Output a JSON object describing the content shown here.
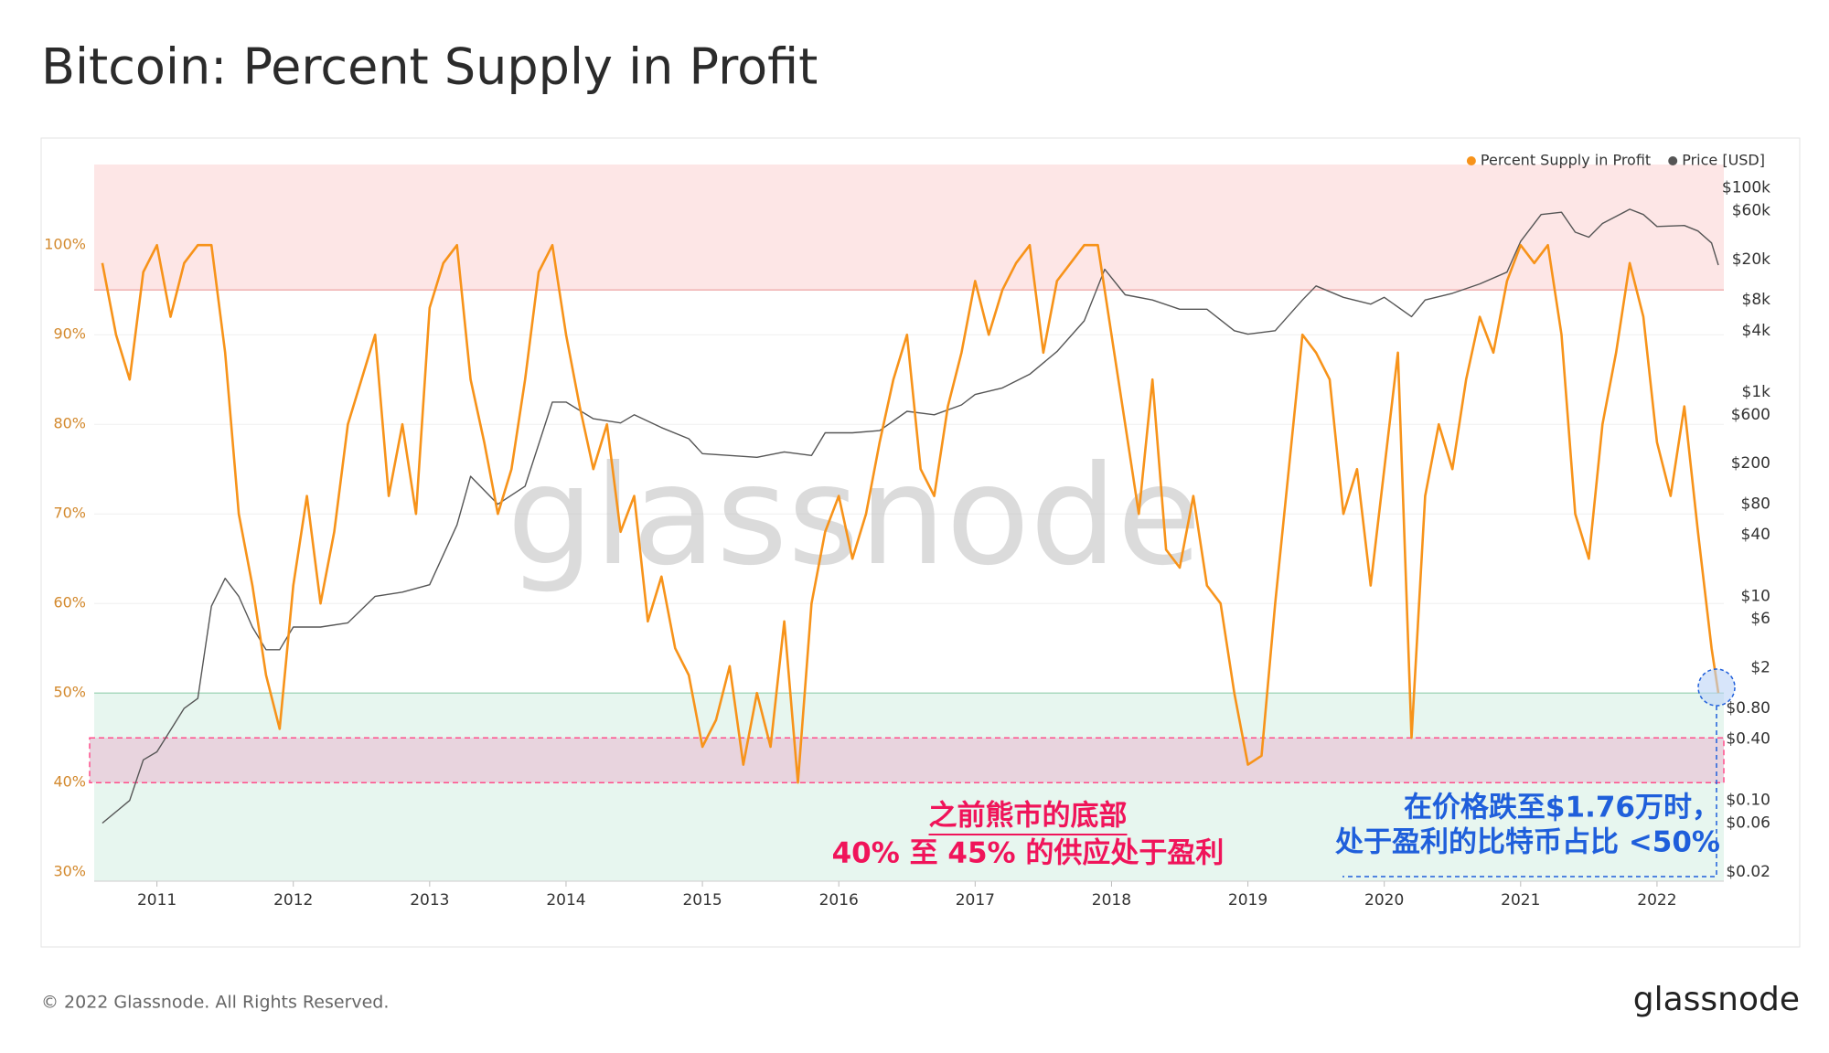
{
  "header": {
    "title": "Bitcoin: Percent Supply in Profit"
  },
  "chart_data": {
    "type": "line",
    "watermark": "glassnode",
    "xlim": [
      2010.54,
      2022.49
    ],
    "xticks": [
      2011,
      2012,
      2013,
      2014,
      2015,
      2016,
      2017,
      2018,
      2019,
      2020,
      2021,
      2022
    ],
    "ylim": [
      29,
      109
    ],
    "yticks": [
      {
        "value": 30,
        "label": "30%"
      },
      {
        "value": 40,
        "label": "40%"
      },
      {
        "value": 50,
        "label": "50%"
      },
      {
        "value": 60,
        "label": "60%"
      },
      {
        "value": 70,
        "label": "70%"
      },
      {
        "value": 80,
        "label": "80%"
      },
      {
        "value": 90,
        "label": "90%"
      },
      {
        "value": 100,
        "label": "100%"
      }
    ],
    "y2lim": [
      0.0162,
      170000
    ],
    "y2log": true,
    "y2ticks": [
      {
        "value": 100000,
        "label": "$100k"
      },
      {
        "value": 60000,
        "label": "$60k"
      },
      {
        "value": 20000,
        "label": "$20k"
      },
      {
        "value": 8000,
        "label": "$8k"
      },
      {
        "value": 4000,
        "label": "$4k"
      },
      {
        "value": 1000,
        "label": "$1k"
      },
      {
        "value": 600,
        "label": "$600"
      },
      {
        "value": 200,
        "label": "$200"
      },
      {
        "value": 80,
        "label": "$80"
      },
      {
        "value": 40,
        "label": "$40"
      },
      {
        "value": 10,
        "label": "$10"
      },
      {
        "value": 6,
        "label": "$6"
      },
      {
        "value": 2,
        "label": "$2"
      },
      {
        "value": 0.8,
        "label": "$0.80"
      },
      {
        "value": 0.4,
        "label": "$0.40"
      },
      {
        "value": 0.1,
        "label": "$0.10"
      },
      {
        "value": 0.06,
        "label": "$0.06"
      },
      {
        "value": 0.02,
        "label": "$0.02"
      }
    ],
    "grid": true,
    "legend": "top-right",
    "bands": [
      {
        "y": [
          95,
          109
        ],
        "color": "#fde6e6",
        "edge": "#ec9a9a"
      },
      {
        "y": [
          29,
          50
        ],
        "color": "#e7f6ef",
        "edge": "#93cfae"
      },
      {
        "y": [
          40,
          45
        ],
        "color": "#e8d4de",
        "edge": "#ff4f8b"
      }
    ],
    "series": [
      {
        "name": "Percent Supply in Profit",
        "color": "#f7931a",
        "x": [
          2010.6,
          2010.7,
          2010.8,
          2010.9,
          2011.0,
          2011.1,
          2011.2,
          2011.3,
          2011.4,
          2011.5,
          2011.6,
          2011.7,
          2011.8,
          2011.9,
          2012.0,
          2012.1,
          2012.2,
          2012.3,
          2012.4,
          2012.5,
          2012.6,
          2012.7,
          2012.8,
          2012.9,
          2013.0,
          2013.1,
          2013.2,
          2013.3,
          2013.4,
          2013.5,
          2013.6,
          2013.7,
          2013.8,
          2013.9,
          2014.0,
          2014.1,
          2014.2,
          2014.3,
          2014.4,
          2014.5,
          2014.6,
          2014.7,
          2014.8,
          2014.9,
          2015.0,
          2015.1,
          2015.2,
          2015.3,
          2015.4,
          2015.5,
          2015.6,
          2015.7,
          2015.8,
          2015.9,
          2016.0,
          2016.1,
          2016.2,
          2016.3,
          2016.4,
          2016.5,
          2016.6,
          2016.7,
          2016.8,
          2016.9,
          2017.0,
          2017.1,
          2017.2,
          2017.3,
          2017.4,
          2017.5,
          2017.6,
          2017.7,
          2017.8,
          2017.9,
          2018.0,
          2018.1,
          2018.2,
          2018.3,
          2018.4,
          2018.5,
          2018.6,
          2018.7,
          2018.8,
          2018.9,
          2019.0,
          2019.1,
          2019.2,
          2019.3,
          2019.4,
          2019.5,
          2019.6,
          2019.7,
          2019.8,
          2019.9,
          2020.0,
          2020.1,
          2020.2,
          2020.3,
          2020.4,
          2020.5,
          2020.6,
          2020.7,
          2020.8,
          2020.9,
          2021.0,
          2021.1,
          2021.2,
          2021.3,
          2021.4,
          2021.5,
          2021.6,
          2021.7,
          2021.8,
          2021.9,
          2022.0,
          2022.1,
          2022.2,
          2022.3,
          2022.4,
          2022.45
        ],
        "values": [
          98,
          90,
          85,
          97,
          100,
          92,
          98,
          100,
          100,
          88,
          70,
          62,
          52,
          46,
          62,
          72,
          60,
          68,
          80,
          85,
          90,
          72,
          80,
          70,
          93,
          98,
          100,
          85,
          78,
          70,
          75,
          85,
          97,
          100,
          90,
          82,
          75,
          80,
          68,
          72,
          58,
          63,
          55,
          52,
          44,
          47,
          53,
          42,
          50,
          44,
          58,
          40,
          60,
          68,
          72,
          65,
          70,
          78,
          85,
          90,
          75,
          72,
          82,
          88,
          96,
          90,
          95,
          98,
          100,
          88,
          96,
          98,
          100,
          100,
          90,
          80,
          70,
          85,
          66,
          64,
          72,
          62,
          60,
          50,
          42,
          43,
          60,
          75,
          90,
          88,
          85,
          70,
          75,
          62,
          75,
          88,
          45,
          72,
          80,
          75,
          85,
          92,
          88,
          96,
          100,
          98,
          100,
          90,
          70,
          65,
          80,
          88,
          98,
          92,
          78,
          72,
          82,
          68,
          55,
          50
        ]
      },
      {
        "name": "Price [USD]",
        "color": "#555555",
        "axis": "y2",
        "x": [
          2010.6,
          2010.8,
          2010.9,
          2011.0,
          2011.2,
          2011.3,
          2011.4,
          2011.5,
          2011.6,
          2011.7,
          2011.8,
          2011.9,
          2012.0,
          2012.2,
          2012.4,
          2012.6,
          2012.8,
          2013.0,
          2013.2,
          2013.3,
          2013.5,
          2013.7,
          2013.9,
          2014.0,
          2014.2,
          2014.4,
          2014.5,
          2014.7,
          2014.9,
          2015.0,
          2015.2,
          2015.4,
          2015.6,
          2015.8,
          2015.9,
          2016.1,
          2016.3,
          2016.5,
          2016.7,
          2016.9,
          2017.0,
          2017.2,
          2017.4,
          2017.6,
          2017.8,
          2017.95,
          2018.1,
          2018.3,
          2018.5,
          2018.7,
          2018.9,
          2019.0,
          2019.2,
          2019.4,
          2019.5,
          2019.7,
          2019.9,
          2020.0,
          2020.2,
          2020.3,
          2020.5,
          2020.7,
          2020.9,
          2021.0,
          2021.15,
          2021.3,
          2021.4,
          2021.5,
          2021.6,
          2021.8,
          2021.9,
          2022.0,
          2022.2,
          2022.3,
          2022.4,
          2022.45
        ],
        "values": [
          0.06,
          0.1,
          0.25,
          0.3,
          0.8,
          1,
          8,
          15,
          10,
          5,
          3,
          3,
          5,
          5,
          5.5,
          10,
          11,
          13,
          50,
          150,
          80,
          120,
          800,
          800,
          550,
          500,
          600,
          450,
          350,
          250,
          240,
          230,
          260,
          240,
          400,
          400,
          420,
          650,
          600,
          750,
          950,
          1100,
          1500,
          2500,
          5000,
          16000,
          9000,
          8000,
          6500,
          6500,
          4000,
          3700,
          4000,
          8000,
          11000,
          8500,
          7300,
          8500,
          5500,
          8000,
          9300,
          11500,
          15000,
          30000,
          55000,
          58000,
          37000,
          33000,
          45000,
          62000,
          55000,
          42000,
          43000,
          38000,
          29000,
          17600
        ]
      }
    ]
  },
  "annotations": {
    "pink": [
      "之前熊市的底部",
      "40% 至 45% 的供应处于盈利"
    ],
    "blue": [
      "在价格跌至$1.76万时，",
      "处于盈利的比特币占比 <50%"
    ]
  },
  "footer": {
    "copyright": "© 2022 Glassnode. All Rights Reserved.",
    "logo": "glassnode"
  }
}
